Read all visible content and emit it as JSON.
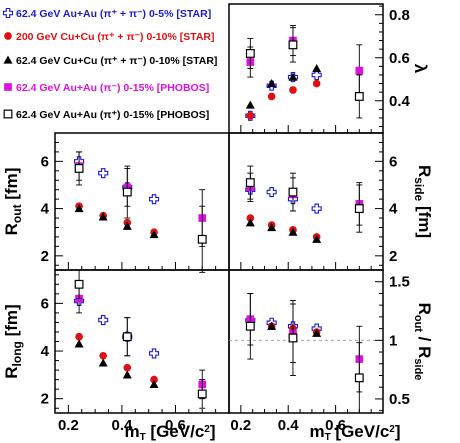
{
  "chart_data": {
    "type": "scatter",
    "legend": {
      "placement": "top-left",
      "entries": [
        {
          "label": "62.4 GeV Au+Au (π⁺ + π⁻) 0-5% [STAR]",
          "color": "#1a1acc",
          "marker": "open-cross"
        },
        {
          "label": "200 GeV Cu+Cu (π⁺ + π⁻) 0-10% [STAR]",
          "color": "#e01010",
          "marker": "filled-circle"
        },
        {
          "label": "62.4 GeV Cu+Cu (π⁺ + π⁻) 0-10% [STAR]",
          "color": "#000000",
          "marker": "filled-triangle"
        },
        {
          "label": "62.4 GeV Au+Au (π⁻) 0-15% [PHOBOS]",
          "color": "#dd11dd",
          "marker": "filled-square"
        },
        {
          "label": "62.4 GeV Au+Au (π⁺) 0-15% [PHOBOS]",
          "color": "#000000",
          "marker": "open-square"
        }
      ]
    },
    "panels": [
      {
        "id": "lambda",
        "ylabel": "λ",
        "ylabel_side": "right",
        "ylim": [
          0.25,
          0.85
        ],
        "yticks": [
          0.4,
          0.6,
          0.8
        ],
        "xlim": [
          0.15,
          0.8
        ],
        "series": [
          {
            "marker": "open-cross",
            "x": [
              0.24,
              0.33,
              0.42,
              0.52
            ],
            "y": [
              0.33,
              0.47,
              0.51,
              0.52
            ],
            "err": [
              0.01,
              0.01,
              0.01,
              0.01
            ]
          },
          {
            "marker": "filled-circle",
            "x": [
              0.24,
              0.33,
              0.42,
              0.52
            ],
            "y": [
              0.33,
              0.42,
              0.45,
              0.48
            ],
            "err": [
              0.01,
              0.01,
              0.01,
              0.01
            ]
          },
          {
            "marker": "filled-triangle",
            "x": [
              0.24,
              0.33,
              0.42,
              0.52
            ],
            "y": [
              0.38,
              0.48,
              0.51,
              0.55
            ],
            "err": [
              0.01,
              0.01,
              0.01,
              0.01
            ]
          },
          {
            "marker": "filled-square",
            "x": [
              0.24,
              0.42,
              0.7
            ],
            "y": [
              0.58,
              0.68,
              0.54
            ],
            "err": [
              0.07,
              0.07,
              0.12
            ]
          },
          {
            "marker": "open-square",
            "x": [
              0.24,
              0.42,
              0.7
            ],
            "y": [
              0.62,
              0.66,
              0.42
            ],
            "err": [
              0.07,
              0.08,
              0.1
            ]
          }
        ]
      },
      {
        "id": "rout",
        "ylabel": "R_out [fm]",
        "ylabel_side": "left",
        "ylim": [
          1.4,
          7.2
        ],
        "yticks": [
          2,
          4,
          6
        ],
        "xlim": [
          0.15,
          0.8
        ],
        "xticks": [
          0.2,
          0.4,
          0.6
        ],
        "series": [
          {
            "marker": "open-cross",
            "x": [
              0.24,
              0.33,
              0.42,
              0.52
            ],
            "y": [
              6.0,
              5.5,
              4.9,
              4.4
            ],
            "err": [
              0.15,
              0.1,
              0.1,
              0.1
            ]
          },
          {
            "marker": "filled-circle",
            "x": [
              0.24,
              0.33,
              0.42,
              0.52
            ],
            "y": [
              4.1,
              3.7,
              3.4,
              3.0
            ],
            "err": [
              0.05,
              0.05,
              0.05,
              0.05
            ]
          },
          {
            "marker": "filled-triangle",
            "x": [
              0.24,
              0.33,
              0.42,
              0.52
            ],
            "y": [
              4.0,
              3.65,
              3.25,
              2.9
            ],
            "err": [
              0.05,
              0.05,
              0.05,
              0.05
            ]
          },
          {
            "marker": "filled-square",
            "x": [
              0.24,
              0.42,
              0.7
            ],
            "y": [
              5.8,
              4.9,
              3.6
            ],
            "err": [
              0.6,
              0.8,
              1.2
            ]
          },
          {
            "marker": "open-square",
            "x": [
              0.24,
              0.42,
              0.7
            ],
            "y": [
              5.7,
              4.7,
              2.7
            ],
            "err": [
              0.7,
              1.1,
              1.4
            ]
          }
        ]
      },
      {
        "id": "rside",
        "ylabel": "R_side [fm]",
        "ylabel_side": "right",
        "ylim": [
          1.4,
          7.2
        ],
        "yticks": [
          2,
          4,
          6
        ],
        "xlim": [
          0.15,
          0.8
        ],
        "series": [
          {
            "marker": "open-cross",
            "x": [
              0.24,
              0.33,
              0.42,
              0.52
            ],
            "y": [
              4.8,
              4.7,
              4.4,
              4.0
            ],
            "err": [
              0.1,
              0.1,
              0.1,
              0.1
            ]
          },
          {
            "marker": "filled-circle",
            "x": [
              0.24,
              0.33,
              0.42,
              0.52
            ],
            "y": [
              3.6,
              3.3,
              3.1,
              2.8
            ],
            "err": [
              0.05,
              0.05,
              0.05,
              0.05
            ]
          },
          {
            "marker": "filled-triangle",
            "x": [
              0.24,
              0.33,
              0.42,
              0.52
            ],
            "y": [
              3.4,
              3.2,
              3.0,
              2.7
            ],
            "err": [
              0.05,
              0.05,
              0.05,
              0.05
            ]
          },
          {
            "marker": "filled-square",
            "x": [
              0.24,
              0.42,
              0.7
            ],
            "y": [
              4.9,
              4.6,
              4.2
            ],
            "err": [
              0.6,
              0.7,
              0.9
            ]
          },
          {
            "marker": "open-square",
            "x": [
              0.24,
              0.42,
              0.7
            ],
            "y": [
              5.1,
              4.7,
              4.0
            ],
            "err": [
              0.7,
              0.8,
              1.0
            ]
          }
        ]
      },
      {
        "id": "rlong",
        "ylabel": "R_long [fm]",
        "ylabel_side": "left",
        "ylim": [
          1.4,
          7.4
        ],
        "yticks": [
          2,
          4,
          6
        ],
        "xlim": [
          0.15,
          0.8
        ],
        "xticks": [
          0.2,
          0.4,
          0.6
        ],
        "xlabel": "m_T [GeV/c²]",
        "series": [
          {
            "marker": "open-cross",
            "x": [
              0.24,
              0.33,
              0.42,
              0.52
            ],
            "y": [
              6.1,
              5.3,
              4.6,
              3.9
            ],
            "err": [
              0.1,
              0.1,
              0.1,
              0.1
            ]
          },
          {
            "marker": "filled-circle",
            "x": [
              0.24,
              0.33,
              0.42,
              0.52
            ],
            "y": [
              4.6,
              3.8,
              3.3,
              2.8
            ],
            "err": [
              0.05,
              0.05,
              0.05,
              0.05
            ]
          },
          {
            "marker": "filled-triangle",
            "x": [
              0.24,
              0.33,
              0.42,
              0.52
            ],
            "y": [
              4.3,
              3.5,
              3.0,
              2.6
            ],
            "err": [
              0.05,
              0.05,
              0.05,
              0.05
            ]
          },
          {
            "marker": "filled-square",
            "x": [
              0.24,
              0.42,
              0.7
            ],
            "y": [
              6.2,
              4.6,
              2.6
            ],
            "err": [
              0.6,
              0.8,
              0.6
            ]
          },
          {
            "marker": "open-square",
            "x": [
              0.24,
              0.42,
              0.7
            ],
            "y": [
              6.8,
              4.6,
              2.2
            ],
            "err": [
              0.6,
              0.8,
              0.6
            ]
          }
        ]
      },
      {
        "id": "ratio",
        "ylabel": "R_out / R_side",
        "ylabel_side": "right",
        "ylim": [
          0.38,
          1.6
        ],
        "yticks": [
          0.5,
          1.0,
          1.5
        ],
        "xlim": [
          0.15,
          0.8
        ],
        "xticks": [
          0.2,
          0.4,
          0.6
        ],
        "xlabel": "m_T [GeV/c²]",
        "reference_line": 1.0,
        "series": [
          {
            "marker": "open-cross",
            "x": [
              0.24,
              0.33,
              0.42,
              0.52
            ],
            "y": [
              1.17,
              1.15,
              1.12,
              1.1
            ],
            "err": [
              0.02,
              0.02,
              0.02,
              0.02
            ]
          },
          {
            "marker": "filled-circle",
            "x": [
              0.24,
              0.33,
              0.42,
              0.52
            ],
            "y": [
              1.12,
              1.12,
              1.1,
              1.07
            ],
            "err": [
              0.02,
              0.02,
              0.02,
              0.02
            ]
          },
          {
            "marker": "filled-triangle",
            "x": [
              0.24,
              0.33,
              0.42,
              0.52
            ],
            "y": [
              1.14,
              1.12,
              1.08,
              1.06
            ],
            "err": [
              0.02,
              0.02,
              0.02,
              0.02
            ]
          },
          {
            "marker": "filled-square",
            "x": [
              0.24,
              0.42,
              0.7
            ],
            "y": [
              1.18,
              1.06,
              0.84
            ],
            "err": [
              0.22,
              0.25,
              0.28
            ]
          },
          {
            "marker": "open-square",
            "x": [
              0.24,
              0.42,
              0.7
            ],
            "y": [
              1.12,
              1.02,
              0.68
            ],
            "err": [
              0.28,
              0.32,
              0.3
            ]
          }
        ]
      }
    ],
    "colors": {
      "star_auau": "#1a1acc",
      "star_cucu200": "#e01010",
      "star_cucu62": "#000000",
      "phobos_pim": "#dd11dd",
      "phobos_pip": "#000000"
    }
  }
}
